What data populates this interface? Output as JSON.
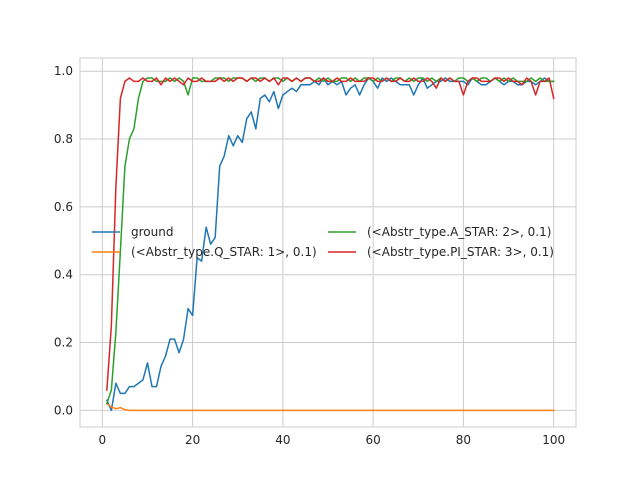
{
  "chart_data": {
    "type": "line",
    "title": "",
    "xlabel": "",
    "ylabel": "",
    "xlim": [
      -4.95,
      104.95
    ],
    "ylim": [
      -0.049,
      1.039
    ],
    "grid": true,
    "legend_position": "center",
    "xticks": [
      0,
      20,
      40,
      60,
      80,
      100
    ],
    "yticks": [
      0.0,
      0.2,
      0.4,
      0.6,
      0.8,
      1.0
    ],
    "xtick_labels": [
      "0",
      "20",
      "40",
      "60",
      "80",
      "100"
    ],
    "ytick_labels": [
      "0.0",
      "0.2",
      "0.4",
      "0.6",
      "0.8",
      "1.0"
    ],
    "series": [
      {
        "name": "ground",
        "color": "#1f77b4",
        "x_start": 1,
        "values": [
          0.03,
          0.0,
          0.08,
          0.05,
          0.05,
          0.07,
          0.07,
          0.08,
          0.09,
          0.14,
          0.07,
          0.07,
          0.13,
          0.16,
          0.21,
          0.21,
          0.17,
          0.21,
          0.3,
          0.28,
          0.45,
          0.44,
          0.54,
          0.49,
          0.51,
          0.72,
          0.75,
          0.81,
          0.78,
          0.81,
          0.79,
          0.86,
          0.88,
          0.83,
          0.92,
          0.93,
          0.91,
          0.94,
          0.89,
          0.93,
          0.94,
          0.95,
          0.94,
          0.96,
          0.96,
          0.96,
          0.97,
          0.96,
          0.98,
          0.96,
          0.97,
          0.96,
          0.97,
          0.93,
          0.95,
          0.96,
          0.93,
          0.96,
          0.98,
          0.97,
          0.95,
          0.98,
          0.97,
          0.98,
          0.97,
          0.96,
          0.96,
          0.96,
          0.93,
          0.96,
          0.98,
          0.95,
          0.96,
          0.97,
          0.97,
          0.98,
          0.97,
          0.97,
          0.97,
          0.97,
          0.96,
          0.98,
          0.97,
          0.96,
          0.96,
          0.97,
          0.98,
          0.97,
          0.96,
          0.97,
          0.97,
          0.96,
          0.96,
          0.97,
          0.97,
          0.96,
          0.97,
          0.98,
          0.97,
          0.97
        ]
      },
      {
        "name": "(<Abstr_type.Q_STAR: 1>, 0.1)",
        "color": "#ff7f0e",
        "x_start": 1,
        "values": [
          0.02,
          0.01,
          0.005,
          0.008,
          0.002,
          0,
          0,
          0,
          0,
          0,
          0,
          0,
          0,
          0,
          0,
          0,
          0,
          0,
          0,
          0,
          0,
          0,
          0,
          0,
          0,
          0,
          0,
          0,
          0,
          0,
          0,
          0,
          0,
          0,
          0,
          0,
          0,
          0,
          0,
          0,
          0,
          0,
          0,
          0,
          0,
          0,
          0,
          0,
          0,
          0,
          0,
          0,
          0,
          0,
          0,
          0,
          0,
          0,
          0,
          0,
          0,
          0,
          0,
          0,
          0,
          0,
          0,
          0,
          0,
          0,
          0,
          0,
          0,
          0,
          0,
          0,
          0,
          0,
          0,
          0,
          0,
          0,
          0,
          0,
          0,
          0,
          0,
          0,
          0,
          0,
          0,
          0,
          0,
          0,
          0,
          0,
          0,
          0,
          0,
          0
        ]
      },
      {
        "name": "(<Abstr_type.A_STAR: 2>, 0.1)",
        "color": "#2ca02c",
        "x_start": 1,
        "values": [
          0.02,
          0.06,
          0.23,
          0.47,
          0.72,
          0.8,
          0.83,
          0.92,
          0.97,
          0.98,
          0.98,
          0.97,
          0.97,
          0.97,
          0.98,
          0.97,
          0.98,
          0.97,
          0.93,
          0.98,
          0.98,
          0.97,
          0.97,
          0.97,
          0.98,
          0.98,
          0.98,
          0.97,
          0.98,
          0.98,
          0.98,
          0.97,
          0.98,
          0.97,
          0.98,
          0.98,
          0.97,
          0.98,
          0.98,
          0.97,
          0.98,
          0.97,
          0.98,
          0.97,
          0.98,
          0.98,
          0.97,
          0.98,
          0.97,
          0.98,
          0.97,
          0.97,
          0.98,
          0.98,
          0.97,
          0.98,
          0.97,
          0.98,
          0.98,
          0.97,
          0.98,
          0.97,
          0.98,
          0.97,
          0.98,
          0.98,
          0.97,
          0.98,
          0.97,
          0.98,
          0.98,
          0.97,
          0.98,
          0.97,
          0.98,
          0.97,
          0.98,
          0.97,
          0.98,
          0.98,
          0.97,
          0.98,
          0.97,
          0.98,
          0.98,
          0.97,
          0.98,
          0.97,
          0.98,
          0.97,
          0.98,
          0.97,
          0.97,
          0.97,
          0.98,
          0.97,
          0.98,
          0.97,
          0.97,
          0.97
        ]
      },
      {
        "name": "(<Abstr_type.PI_STAR: 3>, 0.1)",
        "color": "#d62728",
        "x_start": 1,
        "values": [
          0.06,
          0.25,
          0.66,
          0.92,
          0.97,
          0.98,
          0.97,
          0.97,
          0.98,
          0.97,
          0.97,
          0.98,
          0.96,
          0.98,
          0.97,
          0.98,
          0.97,
          0.96,
          0.98,
          0.97,
          0.97,
          0.98,
          0.97,
          0.97,
          0.97,
          0.98,
          0.97,
          0.98,
          0.97,
          0.98,
          0.98,
          0.97,
          0.98,
          0.98,
          0.97,
          0.98,
          0.97,
          0.98,
          0.96,
          0.98,
          0.98,
          0.97,
          0.98,
          0.97,
          0.98,
          0.98,
          0.97,
          0.97,
          0.98,
          0.97,
          0.97,
          0.98,
          0.97,
          0.97,
          0.98,
          0.97,
          0.97,
          0.97,
          0.98,
          0.98,
          0.97,
          0.97,
          0.98,
          0.97,
          0.97,
          0.98,
          0.97,
          0.97,
          0.98,
          0.97,
          0.97,
          0.98,
          0.97,
          0.95,
          0.98,
          0.97,
          0.98,
          0.97,
          0.97,
          0.93,
          0.97,
          0.98,
          0.98,
          0.97,
          0.97,
          0.97,
          0.98,
          0.98,
          0.97,
          0.98,
          0.97,
          0.97,
          0.96,
          0.98,
          0.97,
          0.93,
          0.97,
          0.97,
          0.98,
          0.92
        ]
      }
    ]
  }
}
